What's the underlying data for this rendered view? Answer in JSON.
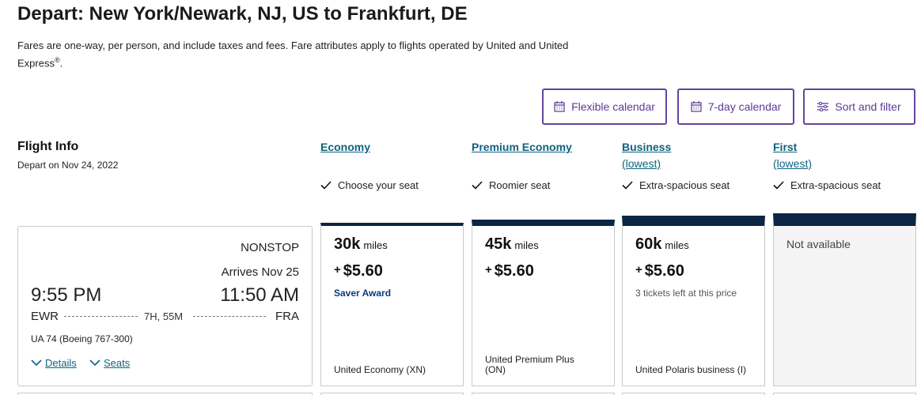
{
  "header": {
    "title": "Depart: New York/Newark, NJ, US to Frankfurt, DE",
    "disclaimer": "Fares are one-way, per person, and include taxes and fees. Fare attributes apply to flights operated by United and United Express",
    "disclaimer_mark": "®"
  },
  "toolbar": {
    "buttons": [
      "Flexible calendar",
      "7-day calendar",
      "Sort and filter"
    ]
  },
  "flight_info": {
    "heading": "Flight Info",
    "depart_date": "Depart on Nov 24, 2022"
  },
  "cabins": [
    {
      "name": "Economy",
      "feature": "Choose your seat"
    },
    {
      "name": "Premium Economy",
      "feature": "Roomier seat"
    },
    {
      "name": "Business",
      "sublabel": "(lowest)",
      "feature": "Extra-spacious seat"
    },
    {
      "name": "First",
      "sublabel": "(lowest)",
      "feature": "Extra-spacious seat"
    }
  ],
  "flight": {
    "stops": "NONSTOP",
    "arrives": "Arrives Nov 25",
    "depart_time": "9:55 PM",
    "arrive_time": "11:50 AM",
    "origin": "EWR",
    "destination": "FRA",
    "duration": "7H, 55M",
    "flight_number": "UA 74 (Boeing 767-300)",
    "links": [
      "Details",
      "Seats"
    ]
  },
  "fares": [
    {
      "miles": "30k",
      "miles_unit": "miles",
      "plus": "+",
      "price": "$5.60",
      "badge": "Saver Award",
      "fare_class": "United Economy (XN)"
    },
    {
      "miles": "45k",
      "miles_unit": "miles",
      "plus": "+",
      "price": "$5.60",
      "fare_class": "United Premium Plus (ON)"
    },
    {
      "miles": "60k",
      "miles_unit": "miles",
      "plus": "+",
      "price": "$5.60",
      "note": "3 tickets left at this price",
      "fare_class": "United Polaris business (I)"
    },
    {
      "unavailable": "Not available"
    }
  ]
}
